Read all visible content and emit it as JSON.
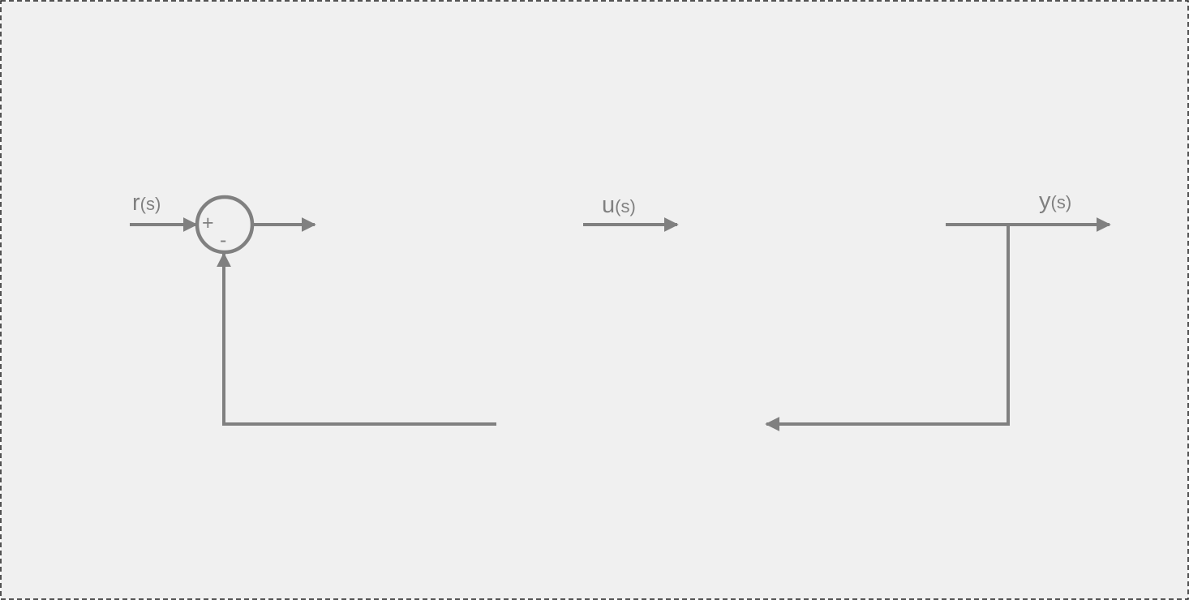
{
  "diagram": {
    "colors": {
      "background": "#f0f0f0",
      "border": "#1a1a1a",
      "stroke": "#808080",
      "text": "#808080"
    },
    "signals": {
      "reference": {
        "symbol": "r",
        "argument": "(s)"
      },
      "control": {
        "symbol": "u",
        "argument": "(s)"
      },
      "output": {
        "symbol": "y",
        "argument": "(s)"
      }
    },
    "summing_junction": {
      "plus_sign": "+",
      "minus_sign": "-"
    }
  }
}
